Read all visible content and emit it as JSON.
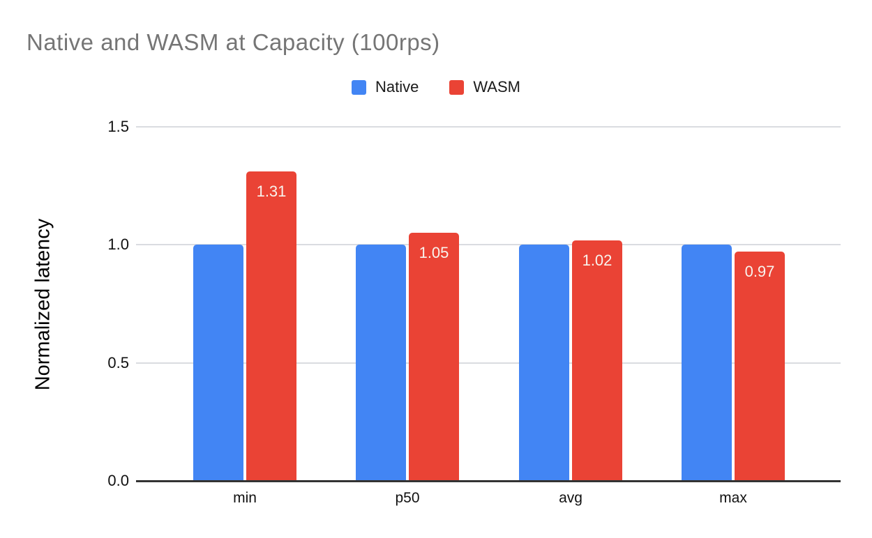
{
  "chart_data": {
    "type": "bar",
    "title": "Native and WASM at Capacity (100rps)",
    "categories": [
      "min",
      "p50",
      "avg",
      "max"
    ],
    "series": [
      {
        "name": "Native",
        "color": "#4285F4",
        "values": [
          1.0,
          1.0,
          1.0,
          1.0
        ],
        "labels": [
          "",
          "",
          "",
          ""
        ]
      },
      {
        "name": "WASM",
        "color": "#EA4335",
        "values": [
          1.31,
          1.05,
          1.02,
          0.97
        ],
        "labels": [
          "1.31",
          "1.05",
          "1.02",
          "0.97"
        ]
      }
    ],
    "xlabel": "",
    "ylabel": "Normalized latency",
    "ylim": [
      0,
      1.5
    ],
    "yticks": [
      "0.0",
      "0.5",
      "1.0",
      "1.5"
    ],
    "grid": true,
    "legend_position": "top-center",
    "colors": {
      "title": "#757575",
      "axis_text": "#111111",
      "gridline": "#dadce0",
      "baseline": "#333333",
      "bar_label": "#f8f4ee",
      "background": "#ffffff"
    }
  }
}
